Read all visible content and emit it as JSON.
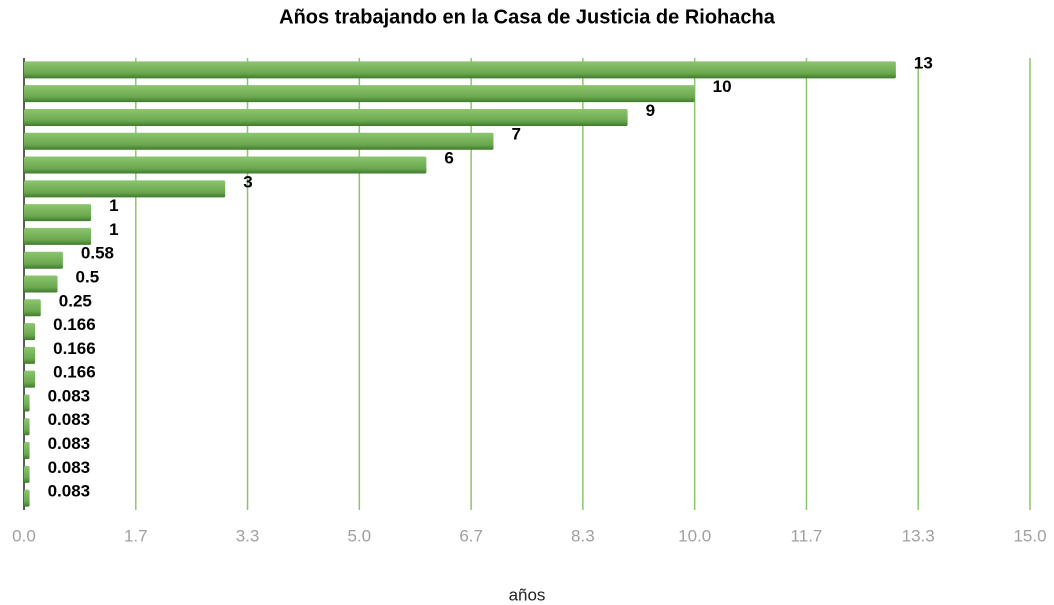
{
  "chart_data": {
    "type": "bar",
    "orientation": "horizontal",
    "title": "Años trabajando en la Casa de Justicia de Riohacha",
    "x_label": "años",
    "categories": [
      null,
      null,
      null,
      null,
      null,
      null,
      null,
      null,
      null,
      null,
      null,
      null,
      null,
      null,
      null,
      null,
      null,
      null,
      null
    ],
    "values": [
      13,
      10,
      9,
      7,
      6,
      3,
      1,
      1,
      0.58,
      0.5,
      0.25,
      0.166,
      0.166,
      0.166,
      0.083,
      0.083,
      0.083,
      0.083,
      0.083
    ],
    "color": "#6aa84f",
    "xlim": [
      0,
      15
    ],
    "xticks": [
      {
        "value": 0,
        "label": "0.0"
      },
      {
        "value": 1.667,
        "label": "1.7"
      },
      {
        "value": 3.333,
        "label": "3.3"
      },
      {
        "value": 5,
        "label": "5.0"
      },
      {
        "value": 6.667,
        "label": "6.7"
      },
      {
        "value": 8.333,
        "label": "8.3"
      },
      {
        "value": 10,
        "label": "10.0"
      },
      {
        "value": 11.667,
        "label": "11.7"
      },
      {
        "value": 13.333,
        "label": "13.3"
      },
      {
        "value": 15,
        "label": "15.0"
      }
    ],
    "grid": true
  }
}
